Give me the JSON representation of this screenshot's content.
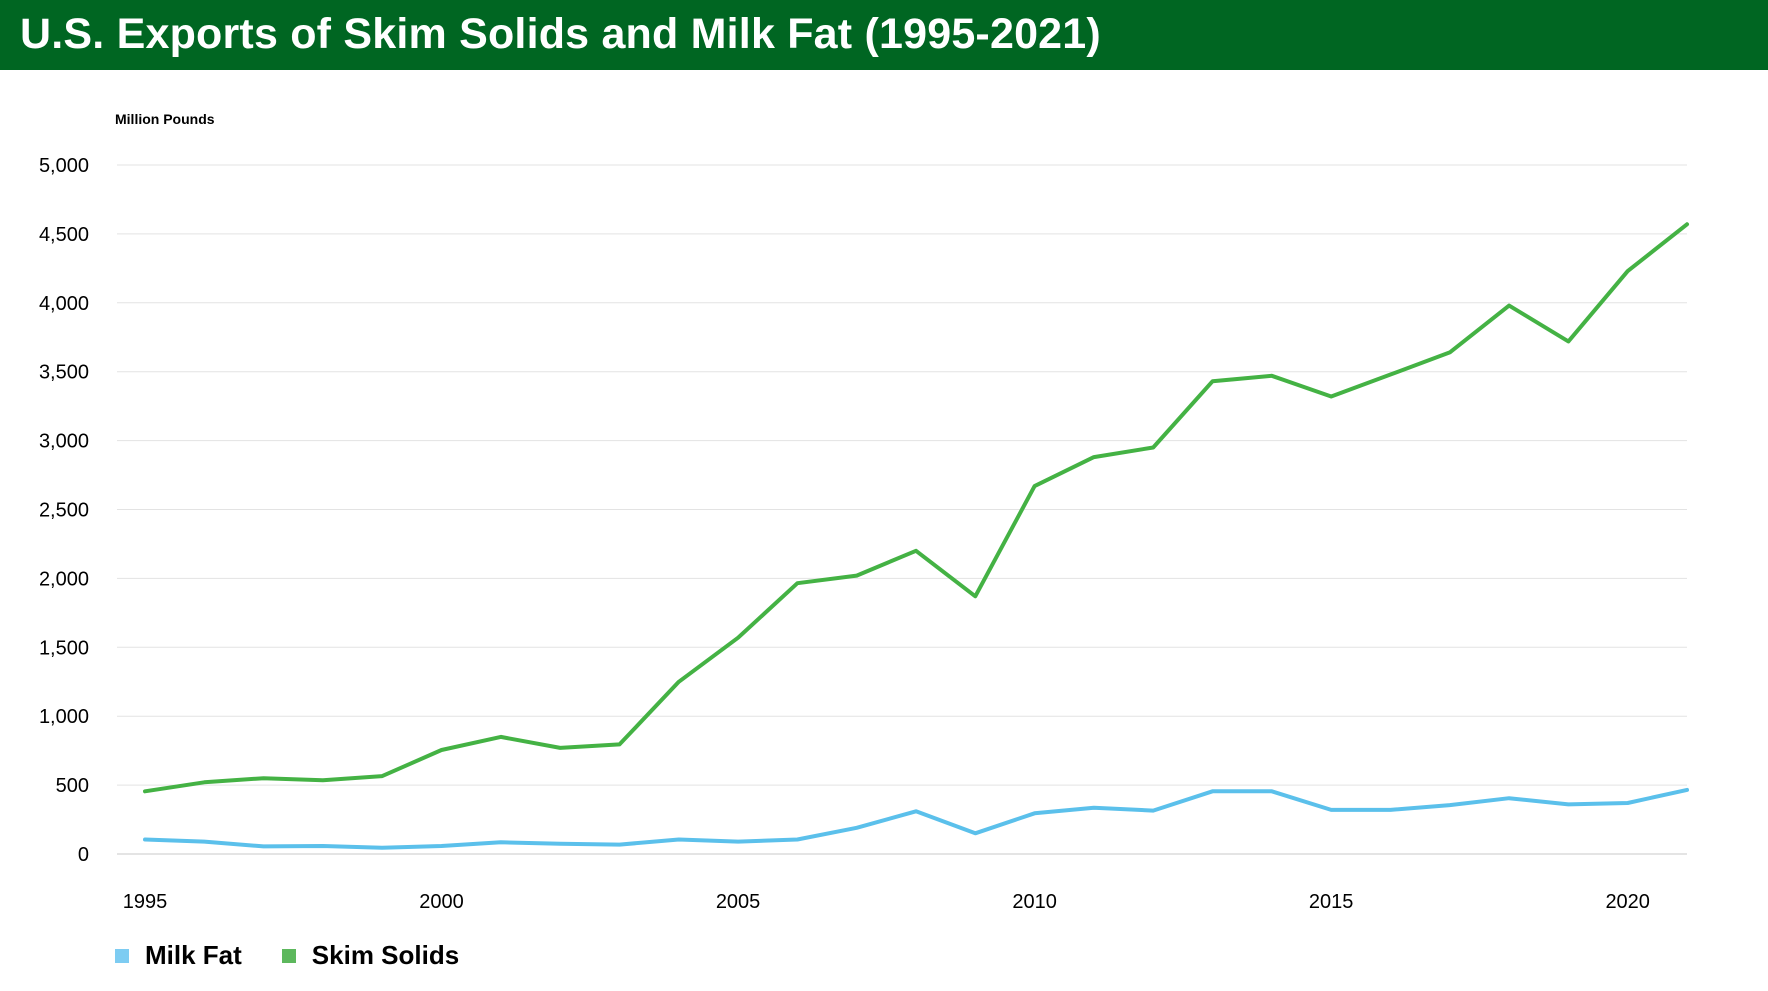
{
  "header": {
    "title": "U.S. Exports of Skim Solids and Milk Fat (1995-2021)"
  },
  "chart_data": {
    "type": "line",
    "title": "U.S. Exports of Skim Solids and Milk Fat (1995-2021)",
    "unit_label": "Million Pounds",
    "xlabel": "",
    "ylabel": "",
    "x": [
      1995,
      1996,
      1997,
      1998,
      1999,
      2000,
      2001,
      2002,
      2003,
      2004,
      2005,
      2006,
      2007,
      2008,
      2009,
      2010,
      2011,
      2012,
      2013,
      2014,
      2015,
      2016,
      2017,
      2018,
      2019,
      2020,
      2021
    ],
    "xlim": [
      1995,
      2021
    ],
    "ylim": [
      0,
      5000
    ],
    "x_ticks": [
      {
        "value": 1995,
        "label": "1995"
      },
      {
        "value": 2000,
        "label": "2000"
      },
      {
        "value": 2005,
        "label": "2005"
      },
      {
        "value": 2010,
        "label": "2010"
      },
      {
        "value": 2015,
        "label": "2015"
      },
      {
        "value": 2020,
        "label": "2020"
      }
    ],
    "y_ticks": [
      {
        "value": 0,
        "label": "0"
      },
      {
        "value": 500,
        "label": "500"
      },
      {
        "value": 1000,
        "label": "1,000"
      },
      {
        "value": 1500,
        "label": "1,500"
      },
      {
        "value": 2000,
        "label": "2,000"
      },
      {
        "value": 2500,
        "label": "2,500"
      },
      {
        "value": 3000,
        "label": "3,000"
      },
      {
        "value": 3500,
        "label": "3,500"
      },
      {
        "value": 4000,
        "label": "4,000"
      },
      {
        "value": 4500,
        "label": "4,500"
      },
      {
        "value": 5000,
        "label": "5,000"
      }
    ],
    "grid": "horizontal",
    "legend_position": "bottom-left",
    "series": [
      {
        "name": "Milk Fat",
        "color": "#5BC0EB",
        "legend_color": "#7DCCF2",
        "values": [
          105,
          90,
          55,
          58,
          45,
          58,
          85,
          75,
          68,
          105,
          90,
          105,
          190,
          310,
          150,
          295,
          335,
          315,
          455,
          455,
          320,
          320,
          355,
          405,
          360,
          370,
          465
        ]
      },
      {
        "name": "Skim Solids",
        "color": "#44B244",
        "legend_color": "#5DB85D",
        "values": [
          455,
          520,
          550,
          535,
          565,
          755,
          850,
          770,
          795,
          1250,
          1570,
          1965,
          2020,
          2200,
          1870,
          2670,
          2880,
          2950,
          3430,
          3470,
          3320,
          3480,
          3640,
          3980,
          3720,
          4230,
          4570
        ]
      }
    ]
  }
}
